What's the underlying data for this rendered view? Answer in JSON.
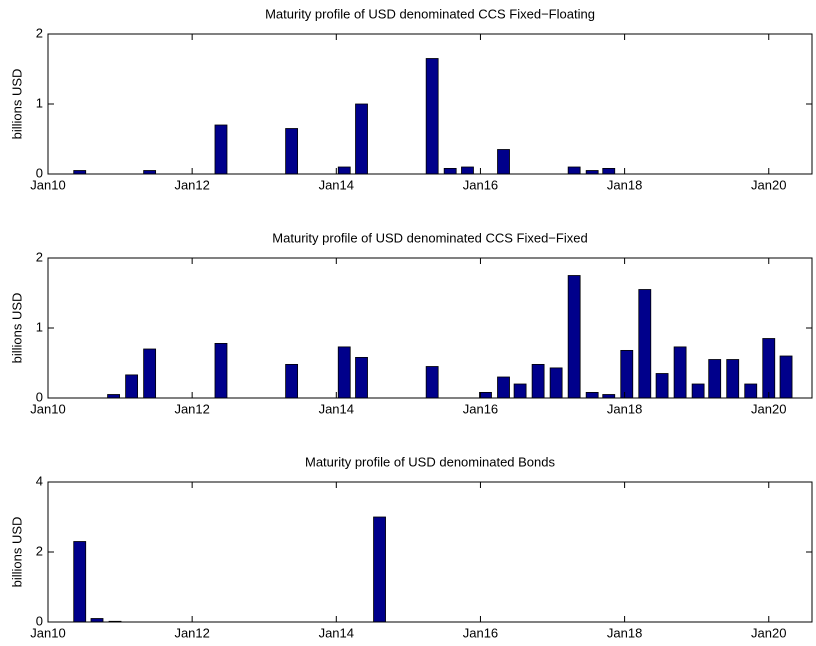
{
  "chart_data": [
    {
      "type": "bar",
      "title": "Maturity profile of USD denominated CCS Fixed−Floating",
      "y_label": "billions USD",
      "color": "#00008b",
      "x": [
        2010.44,
        2011.41,
        2012.4,
        2013.38,
        2014.11,
        2014.35,
        2015.33,
        2015.58,
        2015.82,
        2016.32,
        2017.3,
        2017.55,
        2017.78
      ],
      "values": [
        0.05,
        0.05,
        0.7,
        0.65,
        0.1,
        1.0,
        1.65,
        0.08,
        0.1,
        0.35,
        0.1,
        0.05,
        0.08
      ],
      "xlim": [
        2010,
        2020.6
      ],
      "ylim": [
        0,
        2
      ],
      "yticks": [
        0,
        1,
        2
      ],
      "xticks": [
        {
          "value": 2010,
          "label": "Jan10"
        },
        {
          "value": 2012,
          "label": "Jan12"
        },
        {
          "value": 2014,
          "label": "Jan14"
        },
        {
          "value": 2016,
          "label": "Jan16"
        },
        {
          "value": 2018,
          "label": "Jan18"
        },
        {
          "value": 2020,
          "label": "Jan20"
        }
      ]
    },
    {
      "type": "bar",
      "title": "Maturity profile of USD denominated CCS Fixed−Fixed",
      "y_label": "billions USD",
      "color": "#00008b",
      "x": [
        2010.91,
        2011.16,
        2011.41,
        2012.4,
        2013.38,
        2014.11,
        2014.35,
        2015.33,
        2016.07,
        2016.32,
        2016.55,
        2016.8,
        2017.05,
        2017.3,
        2017.55,
        2017.78,
        2018.03,
        2018.28,
        2018.52,
        2018.77,
        2019.02,
        2019.25,
        2019.5,
        2019.75,
        2020.0,
        2020.24
      ],
      "values": [
        0.05,
        0.33,
        0.7,
        0.78,
        0.48,
        0.73,
        0.58,
        0.45,
        0.08,
        0.3,
        0.2,
        0.48,
        0.43,
        1.75,
        0.08,
        0.05,
        0.68,
        1.55,
        0.35,
        0.73,
        0.2,
        0.55,
        0.55,
        0.2,
        0.85,
        0.6
      ],
      "xlim": [
        2010,
        2020.6
      ],
      "ylim": [
        0,
        2
      ],
      "yticks": [
        0,
        1,
        2
      ],
      "xticks": [
        {
          "value": 2010,
          "label": "Jan10"
        },
        {
          "value": 2012,
          "label": "Jan12"
        },
        {
          "value": 2014,
          "label": "Jan14"
        },
        {
          "value": 2016,
          "label": "Jan16"
        },
        {
          "value": 2018,
          "label": "Jan18"
        },
        {
          "value": 2020,
          "label": "Jan20"
        }
      ]
    },
    {
      "type": "bar",
      "title": "Maturity profile of USD denominated Bonds",
      "y_label": "billions USD",
      "color": "#00008b",
      "x": [
        2010.44,
        2010.68,
        2010.93,
        2014.6
      ],
      "values": [
        2.3,
        0.1,
        0.02,
        3.0
      ],
      "xlim": [
        2010,
        2020.6
      ],
      "ylim": [
        0,
        4
      ],
      "yticks": [
        0,
        2,
        4
      ],
      "xticks": [
        {
          "value": 2010,
          "label": "Jan10"
        },
        {
          "value": 2012,
          "label": "Jan12"
        },
        {
          "value": 2014,
          "label": "Jan14"
        },
        {
          "value": 2016,
          "label": "Jan16"
        },
        {
          "value": 2018,
          "label": "Jan18"
        },
        {
          "value": 2020,
          "label": "Jan20"
        }
      ]
    }
  ]
}
